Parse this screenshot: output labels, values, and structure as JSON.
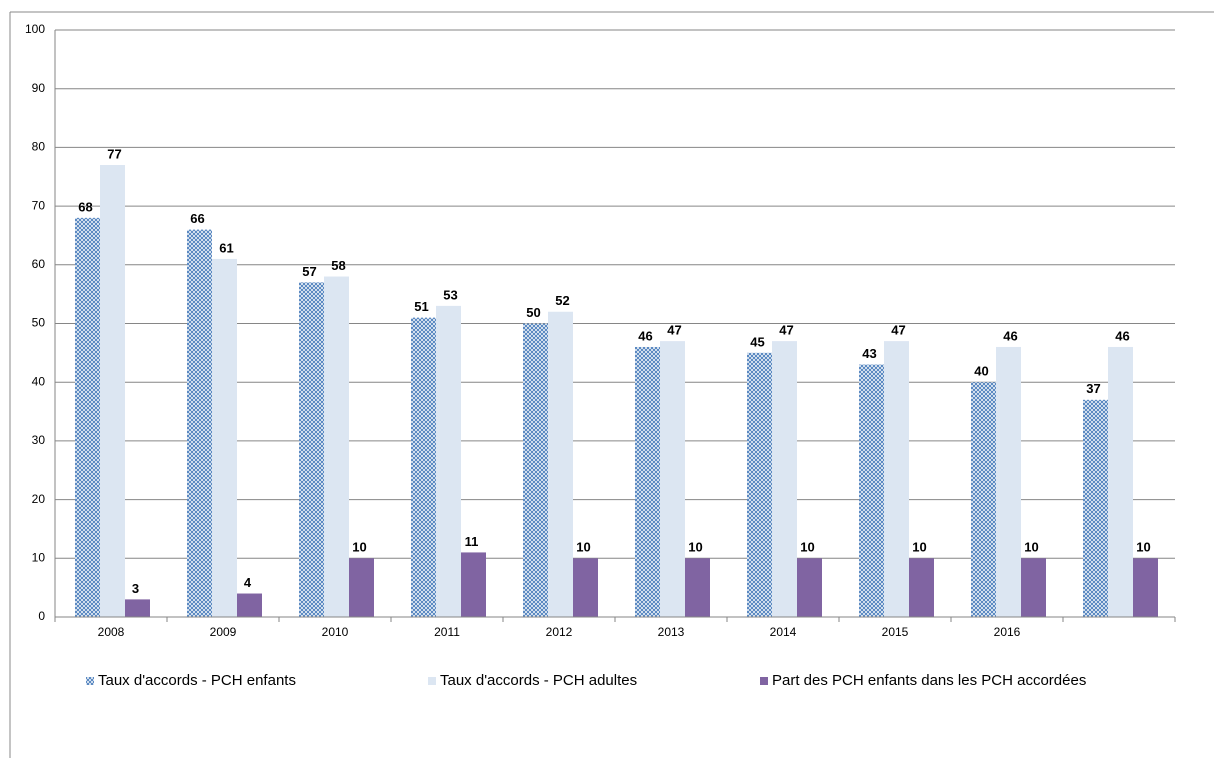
{
  "chart_data": {
    "type": "bar",
    "categories": [
      "2008",
      "2009",
      "2010",
      "2011",
      "2012",
      "2013",
      "2014",
      "2015",
      "2016",
      null
    ],
    "series": [
      {
        "name": "Taux d'accords - PCH enfants",
        "color": "#4f81bd",
        "values": [
          68,
          66,
          57,
          51,
          50,
          46,
          45,
          43,
          40,
          37
        ]
      },
      {
        "name": "Taux d'accords - PCH adultes",
        "color": "#dce6f2",
        "values": [
          77,
          61,
          58,
          53,
          52,
          47,
          47,
          47,
          46,
          46
        ]
      },
      {
        "name": "Part des PCH enfants dans les PCH accordées",
        "color": "#8064a2",
        "values": [
          3,
          4,
          10,
          11,
          10,
          10,
          10,
          10,
          10,
          10
        ]
      }
    ],
    "ylim": [
      0,
      100
    ],
    "yticks": [
      0,
      10,
      20,
      30,
      40,
      50,
      60,
      70,
      80,
      90,
      100
    ],
    "grid": true
  }
}
